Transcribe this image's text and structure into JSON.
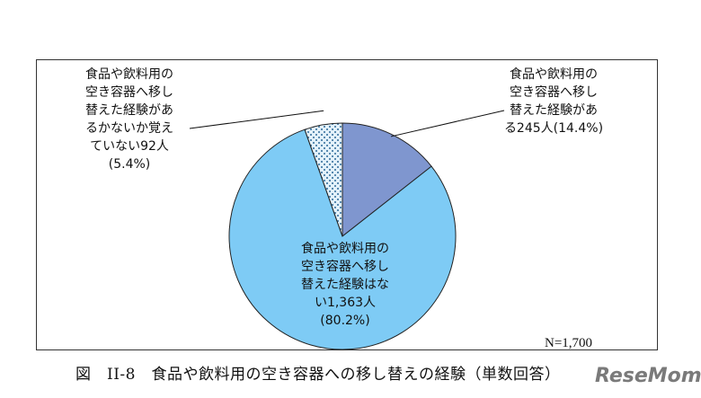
{
  "chart_data": {
    "type": "pie",
    "title": "",
    "total_label": "N=1,700",
    "slices": [
      {
        "label": "食品や飲料用の空き容器へ移し替えた経験がある",
        "count": 245,
        "value": 14.4,
        "text": "食品や飲料用の\n空き容器へ移し\n替えた経験があ\nる245人(14.4%)",
        "color": "#7f96cf",
        "pattern": "solid"
      },
      {
        "label": "食品や飲料用の空き容器へ移し替えた経験はない",
        "count": 1363,
        "value": 80.2,
        "text": "食品や飲料用の\n空き容器へ移し\n替えた経験はな\nい1,363人\n(80.2%)",
        "color": "#7ecbf5",
        "pattern": "solid"
      },
      {
        "label": "食品や飲料用の空き容器へ移し替えた経験があるかないか覚えていない",
        "count": 92,
        "value": 5.4,
        "text": "食品や飲料用の\n空き容器へ移し\n替えた経験があ\nるかないか覚え\nていない92人\n(5.4%)",
        "color": "#dbeef9",
        "pattern": "dots"
      }
    ]
  },
  "caption": "図　II-8　食品や飲料用の空き容器への移し替えの経験（単数回答）",
  "watermark": "ReseMom"
}
